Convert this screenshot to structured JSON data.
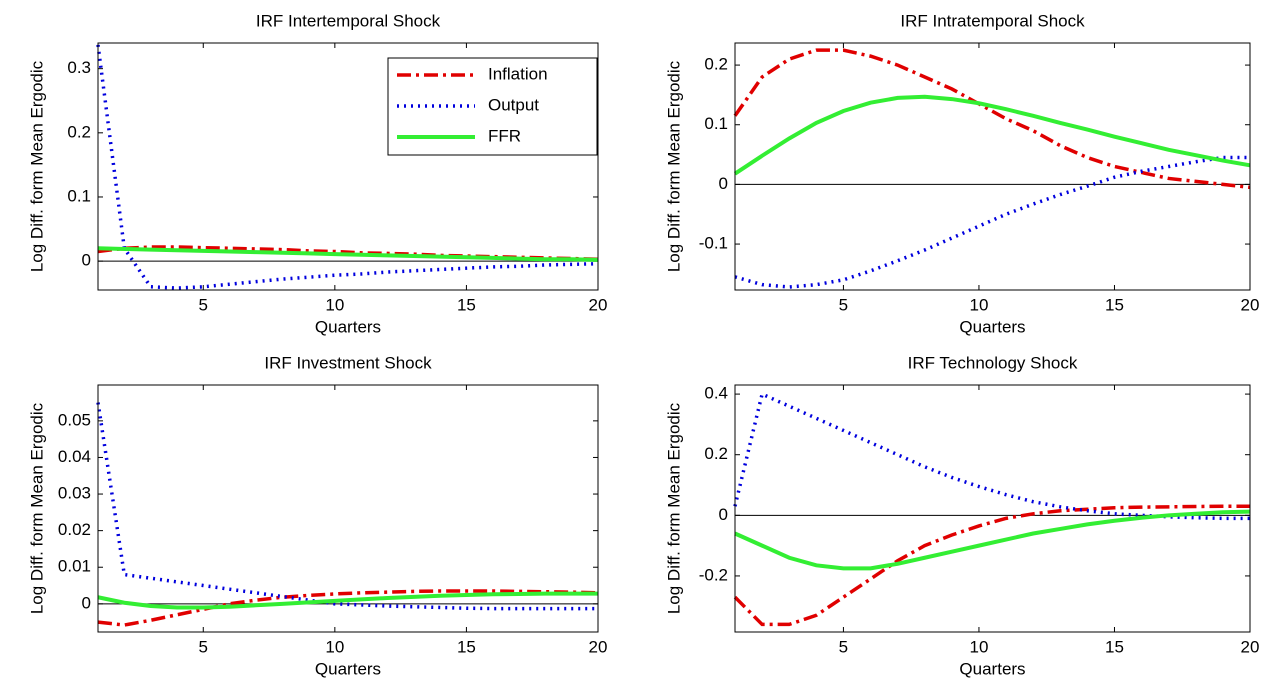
{
  "chart_data": [
    {
      "type": "line",
      "title": "IRF Intertemporal Shock",
      "xlabel": "Quarters",
      "ylabel": "Log Diff. form Mean Ergodic",
      "x": [
        1,
        2,
        3,
        4,
        5,
        6,
        7,
        8,
        9,
        10,
        11,
        12,
        13,
        14,
        15,
        16,
        17,
        18,
        19,
        20
      ],
      "xlim": [
        1,
        20
      ],
      "xticks": [
        5,
        10,
        15,
        20
      ],
      "ylim": [
        -0.045,
        0.34
      ],
      "yticks": [
        0,
        0.1,
        0.2,
        0.3
      ],
      "zero_line": true,
      "legend": "upper right",
      "series": [
        {
          "name": "Inflation",
          "color": "#e00000",
          "style": "dashdot",
          "values": [
            0.015,
            0.02,
            0.022,
            0.022,
            0.021,
            0.02,
            0.019,
            0.018,
            0.016,
            0.015,
            0.013,
            0.012,
            0.011,
            0.009,
            0.008,
            0.007,
            0.006,
            0.005,
            0.004,
            0.003
          ]
        },
        {
          "name": "Output",
          "color": "#0000dd",
          "style": "dotted",
          "values": [
            0.337,
            0.02,
            -0.04,
            -0.042,
            -0.04,
            -0.036,
            -0.032,
            -0.028,
            -0.025,
            -0.022,
            -0.02,
            -0.017,
            -0.015,
            -0.013,
            -0.011,
            -0.009,
            -0.008,
            -0.006,
            -0.005,
            -0.004
          ]
        },
        {
          "name": "FFR",
          "color": "#33ee33",
          "style": "solid",
          "values": [
            0.02,
            0.019,
            0.018,
            0.017,
            0.016,
            0.015,
            0.014,
            0.013,
            0.012,
            0.011,
            0.01,
            0.009,
            0.008,
            0.007,
            0.006,
            0.005,
            0.004,
            0.003,
            0.003,
            0.002
          ]
        }
      ]
    },
    {
      "type": "line",
      "title": "IRF Intratemporal Shock",
      "xlabel": "Quarters",
      "ylabel": "Log Diff. form Mean Ergodic",
      "x": [
        1,
        2,
        3,
        4,
        5,
        6,
        7,
        8,
        9,
        10,
        11,
        12,
        13,
        14,
        15,
        16,
        17,
        18,
        19,
        20
      ],
      "xlim": [
        1,
        20
      ],
      "xticks": [
        5,
        10,
        15,
        20
      ],
      "ylim": [
        -0.177,
        0.237
      ],
      "yticks": [
        -0.1,
        0,
        0.1,
        0.2
      ],
      "zero_line": true,
      "series": [
        {
          "color": "#e00000",
          "style": "dashdot",
          "values": [
            0.115,
            0.18,
            0.21,
            0.225,
            0.225,
            0.215,
            0.2,
            0.18,
            0.16,
            0.135,
            0.11,
            0.09,
            0.065,
            0.045,
            0.03,
            0.02,
            0.01,
            0.005,
            0.0,
            -0.005
          ]
        },
        {
          "color": "#0000dd",
          "style": "dotted",
          "values": [
            -0.155,
            -0.168,
            -0.172,
            -0.168,
            -0.16,
            -0.145,
            -0.128,
            -0.11,
            -0.09,
            -0.07,
            -0.05,
            -0.033,
            -0.017,
            -0.003,
            0.012,
            0.022,
            0.03,
            0.038,
            0.045,
            0.045
          ]
        },
        {
          "color": "#33ee33",
          "style": "solid",
          "values": [
            0.018,
            0.048,
            0.077,
            0.103,
            0.123,
            0.137,
            0.145,
            0.147,
            0.143,
            0.136,
            0.126,
            0.115,
            0.103,
            0.092,
            0.08,
            0.069,
            0.058,
            0.049,
            0.04,
            0.032
          ]
        }
      ]
    },
    {
      "type": "line",
      "title": "IRF Investment Shock",
      "xlabel": "Quarters",
      "ylabel": "Log Diff. form Mean Ergodic",
      "x": [
        1,
        2,
        3,
        4,
        5,
        6,
        7,
        8,
        9,
        10,
        11,
        12,
        13,
        14,
        15,
        16,
        17,
        18,
        19,
        20
      ],
      "xlim": [
        1,
        20
      ],
      "xticks": [
        5,
        10,
        15,
        20
      ],
      "ylim": [
        -0.0077,
        0.0598
      ],
      "yticks": [
        0,
        0.01,
        0.02,
        0.03,
        0.04,
        0.05
      ],
      "zero_line": true,
      "series": [
        {
          "color": "#e00000",
          "style": "dashdot",
          "values": [
            -0.005,
            -0.0058,
            -0.0045,
            -0.003,
            -0.0015,
            0,
            0.001,
            0.0018,
            0.0023,
            0.0027,
            0.003,
            0.0032,
            0.0034,
            0.0035,
            0.0035,
            0.0035,
            0.0034,
            0.0033,
            0.0032,
            0.003
          ]
        },
        {
          "color": "#0000dd",
          "style": "dotted",
          "values": [
            0.055,
            0.008,
            0.007,
            0.006,
            0.005,
            0.004,
            0.003,
            0.002,
            0.001,
            0.0,
            -0.0003,
            -0.0006,
            -0.0008,
            -0.001,
            -0.0012,
            -0.0013,
            -0.0013,
            -0.0013,
            -0.0013,
            -0.0013
          ]
        },
        {
          "color": "#33ee33",
          "style": "solid",
          "values": [
            0.0018,
            0.0003,
            -0.0006,
            -0.001,
            -0.001,
            -0.0008,
            -0.0004,
            0.0,
            0.0004,
            0.0008,
            0.0012,
            0.0016,
            0.0019,
            0.0022,
            0.0024,
            0.0026,
            0.0027,
            0.0028,
            0.0028,
            0.0028
          ]
        }
      ]
    },
    {
      "type": "line",
      "title": "IRF Technology Shock",
      "xlabel": "Quarters",
      "ylabel": "Log Diff. form Mean Ergodic",
      "x": [
        1,
        2,
        3,
        4,
        5,
        6,
        7,
        8,
        9,
        10,
        11,
        12,
        13,
        14,
        15,
        16,
        17,
        18,
        19,
        20
      ],
      "xlim": [
        1,
        20
      ],
      "xticks": [
        5,
        10,
        15,
        20
      ],
      "ylim": [
        -0.385,
        0.43
      ],
      "yticks": [
        -0.2,
        0,
        0.2,
        0.4
      ],
      "zero_line": true,
      "series": [
        {
          "color": "#e00000",
          "style": "dashdot",
          "values": [
            -0.27,
            -0.36,
            -0.36,
            -0.33,
            -0.27,
            -0.21,
            -0.15,
            -0.1,
            -0.065,
            -0.035,
            -0.01,
            0.005,
            0.015,
            0.02,
            0.025,
            0.027,
            0.028,
            0.029,
            0.03,
            0.03
          ]
        },
        {
          "color": "#0000dd",
          "style": "dotted",
          "values": [
            0.03,
            0.4,
            0.36,
            0.32,
            0.28,
            0.24,
            0.2,
            0.16,
            0.125,
            0.095,
            0.068,
            0.045,
            0.028,
            0.015,
            0.005,
            0.0,
            -0.005,
            -0.008,
            -0.01,
            -0.01
          ]
        },
        {
          "color": "#33ee33",
          "style": "solid",
          "values": [
            -0.06,
            -0.1,
            -0.14,
            -0.165,
            -0.175,
            -0.175,
            -0.16,
            -0.14,
            -0.12,
            -0.1,
            -0.08,
            -0.06,
            -0.045,
            -0.03,
            -0.018,
            -0.008,
            0.0,
            0.005,
            0.01,
            0.012
          ]
        }
      ]
    }
  ]
}
